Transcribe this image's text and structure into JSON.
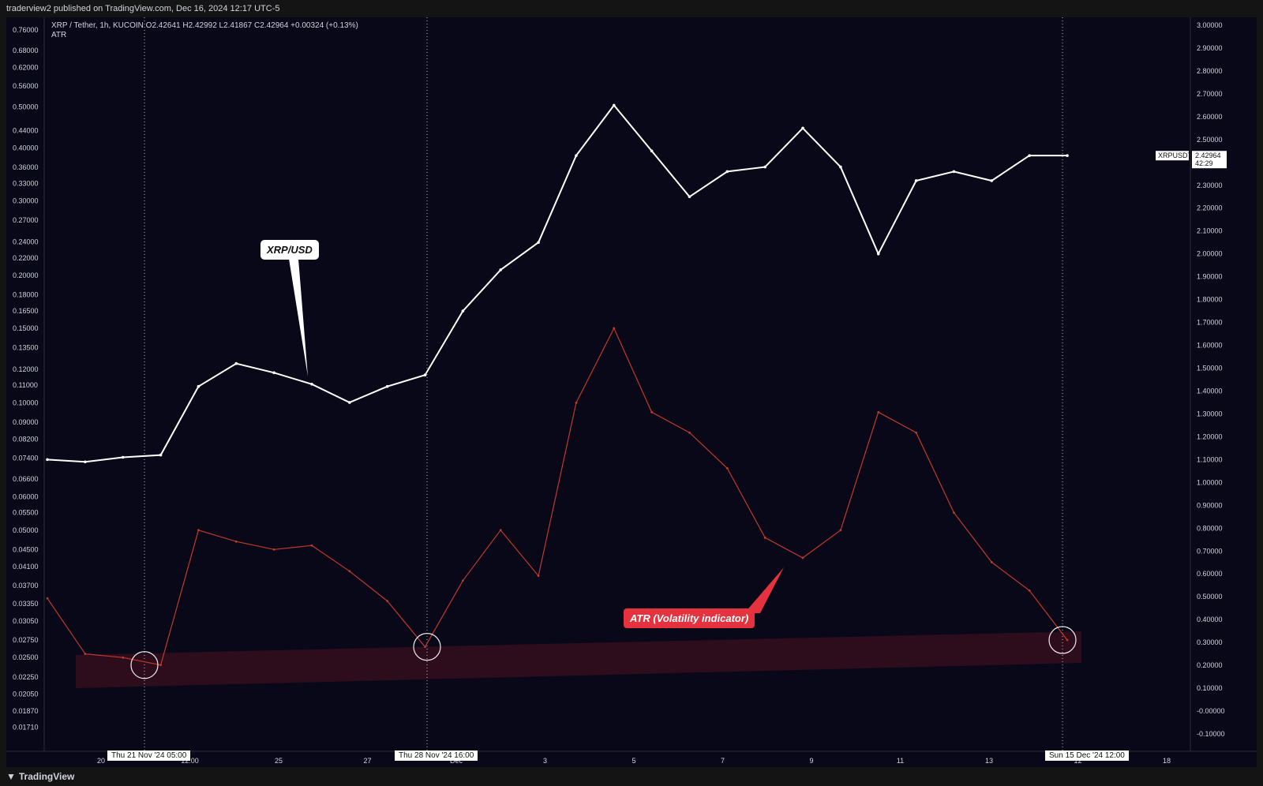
{
  "header": {
    "text": "traderview2 published on TradingView.com, Dec 16, 2024 12:17 UTC-5"
  },
  "legend": {
    "line1": "XRP / Tether, 1h, KUCOIN  O2.42641  H2.42992  L2.41867  C2.42964  +0.00324 (+0.13%)",
    "line2": "ATR"
  },
  "callouts": {
    "xrp": "XRP/USD",
    "atr": "ATR (Volatility indicator)"
  },
  "price_badge": {
    "symbol": "XRPUSDT",
    "value": "2.42964",
    "countdown": "42:29"
  },
  "date_labels": {
    "d1": "Thu 21 Nov '24   05:00",
    "d2": "Thu 28 Nov '24   16:00",
    "d3": "Sun 15 Dec '24   12:00"
  },
  "footer": {
    "brand": "TradingView"
  },
  "colors": {
    "background": "#080818",
    "price": "#ffffff",
    "atr": "#c0392b",
    "band": "#3a0f1c"
  },
  "chart_data": {
    "type": "line",
    "series": [
      {
        "name": "XRP / Tether, 1h, KUCOIN",
        "axis": "right",
        "x": [
          "2024-11-18",
          "2024-11-19",
          "2024-11-20",
          "2024-11-21",
          "2024-11-22",
          "2024-11-23",
          "2024-11-24",
          "2024-11-25",
          "2024-11-26",
          "2024-11-27",
          "2024-11-28",
          "2024-11-29",
          "2024-11-30",
          "2024-12-01",
          "2024-12-02",
          "2024-12-03",
          "2024-12-04",
          "2024-12-05",
          "2024-12-06",
          "2024-12-07",
          "2024-12-08",
          "2024-12-09",
          "2024-12-10",
          "2024-12-11",
          "2024-12-12",
          "2024-12-13",
          "2024-12-14",
          "2024-12-15"
        ],
        "values": [
          1.1,
          1.09,
          1.11,
          1.12,
          1.42,
          1.52,
          1.48,
          1.43,
          1.35,
          1.42,
          1.47,
          1.75,
          1.93,
          2.05,
          2.43,
          2.65,
          2.45,
          2.25,
          2.36,
          2.38,
          2.55,
          2.38,
          2.0,
          2.32,
          2.36,
          2.32,
          2.43,
          2.43
        ]
      },
      {
        "name": "ATR",
        "axis": "left",
        "x": [
          "2024-11-18",
          "2024-11-19",
          "2024-11-20",
          "2024-11-21",
          "2024-11-22",
          "2024-11-23",
          "2024-11-24",
          "2024-11-25",
          "2024-11-26",
          "2024-11-27",
          "2024-11-28",
          "2024-11-29",
          "2024-11-30",
          "2024-12-01",
          "2024-12-02",
          "2024-12-03",
          "2024-12-04",
          "2024-12-05",
          "2024-12-06",
          "2024-12-07",
          "2024-12-08",
          "2024-12-09",
          "2024-12-10",
          "2024-12-11",
          "2024-12-12",
          "2024-12-13",
          "2024-12-14",
          "2024-12-15"
        ],
        "values": [
          0.0345,
          0.0255,
          0.025,
          0.024,
          0.05,
          0.047,
          0.045,
          0.046,
          0.04,
          0.034,
          0.0265,
          0.038,
          0.05,
          0.039,
          0.1,
          0.15,
          0.095,
          0.085,
          0.07,
          0.048,
          0.043,
          0.05,
          0.095,
          0.085,
          0.055,
          0.042,
          0.036,
          0.0275
        ]
      }
    ],
    "right_axis": {
      "ticks": [
        "3.00000",
        "2.90000",
        "2.80000",
        "2.70000",
        "2.60000",
        "2.50000",
        "2.40000",
        "2.30000",
        "2.20000",
        "2.10000",
        "2.00000",
        "1.90000",
        "1.80000",
        "1.70000",
        "1.60000",
        "1.50000",
        "1.40000",
        "1.30000",
        "1.20000",
        "1.10000",
        "1.00000",
        "0.90000",
        "0.80000",
        "0.70000",
        "0.60000",
        "0.50000",
        "0.40000",
        "0.30000",
        "0.20000",
        "0.10000",
        "-0.00000",
        "-0.10000"
      ],
      "range": [
        -0.1,
        3.0
      ]
    },
    "left_axis": {
      "ticks": [
        "0.76000",
        "0.68000",
        "0.62000",
        "0.56000",
        "0.50000",
        "0.44000",
        "0.40000",
        "0.36000",
        "0.33000",
        "0.30000",
        "0.27000",
        "0.24000",
        "0.22000",
        "0.20000",
        "0.18000",
        "0.16500",
        "0.15000",
        "0.13500",
        "0.12000",
        "0.11000",
        "0.10000",
        "0.09000",
        "0.08200",
        "0.07400",
        "0.06600",
        "0.06000",
        "0.05500",
        "0.05000",
        "0.04500",
        "0.04100",
        "0.03700",
        "0.03350",
        "0.03050",
        "0.02750",
        "0.02500",
        "0.02250",
        "0.02050",
        "0.01870",
        "0.01710"
      ],
      "scale": "log",
      "range": [
        0.0165,
        0.78
      ]
    },
    "x_axis": {
      "ticks": [
        "20",
        "12:00",
        "25",
        "27",
        "Dec",
        "3",
        "5",
        "7",
        "9",
        "11",
        "13",
        "12",
        "18"
      ]
    },
    "grid": false,
    "legend": "top-left"
  }
}
